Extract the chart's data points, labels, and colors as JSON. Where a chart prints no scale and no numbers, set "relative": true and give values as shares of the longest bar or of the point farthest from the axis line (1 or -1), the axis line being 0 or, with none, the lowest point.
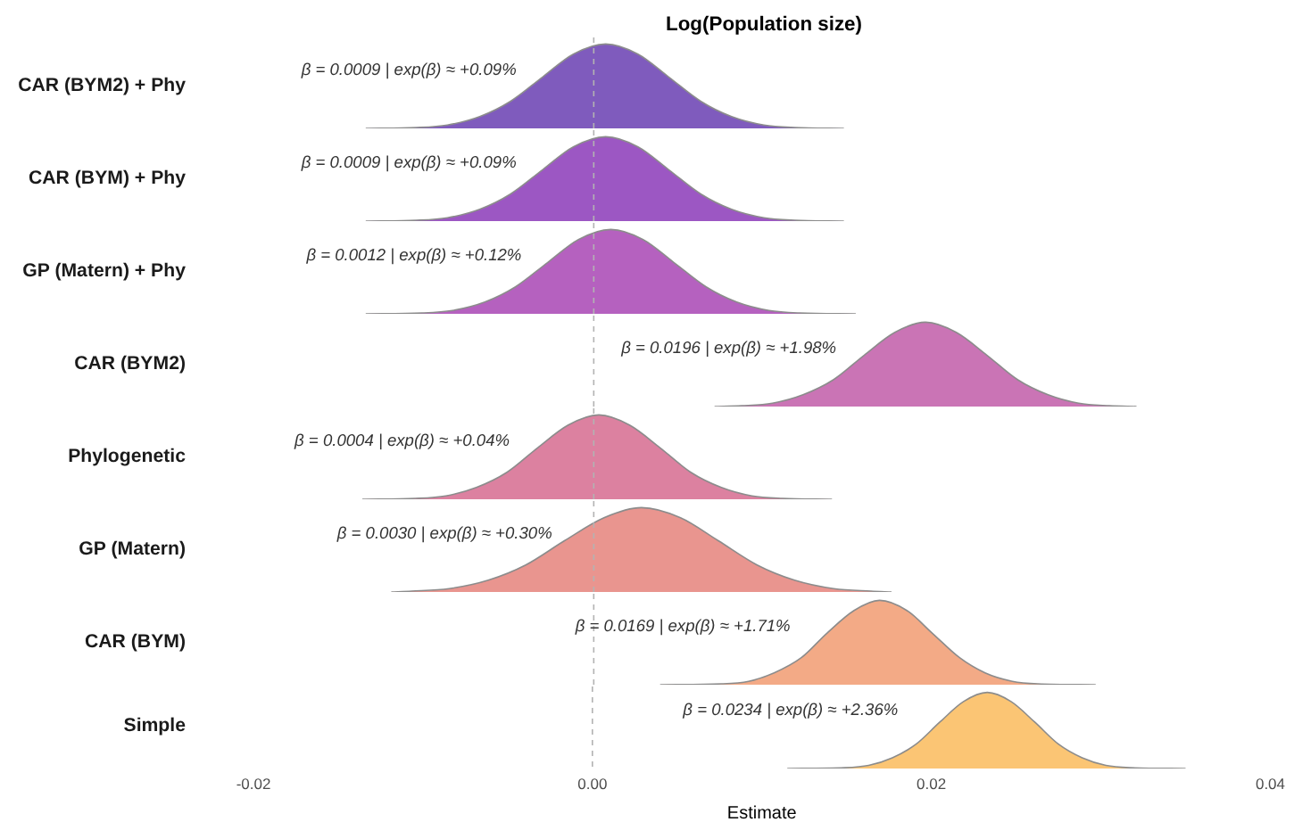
{
  "chart_data": [
    {
      "type": "area",
      "relative": true,
      "title": "Log(Population size)",
      "tick_labels": false,
      "xlim": [
        -0.02,
        0.04
      ],
      "series": [
        {
          "name": "CAR (BYM2) + Phy",
          "color": "#7f5bbd",
          "x": [
            -0.0134,
            -0.0104,
            -0.0086,
            -0.0067,
            -0.0049,
            -0.003,
            -0.0012,
            0.0007,
            0.0026,
            0.0044,
            0.0063,
            0.0081,
            0.01,
            0.0118,
            0.0147
          ],
          "values": [
            0,
            0.01,
            0.04,
            0.14,
            0.32,
            0.61,
            0.88,
            1,
            0.88,
            0.61,
            0.32,
            0.14,
            0.04,
            0.01,
            0
          ]
        }
      ],
      "annotations": [
        "β = 0.0009 | exp(β) ≈ +0.09%"
      ],
      "ref_lines": [
        {
          "axis": "x",
          "value": 0,
          "line_style": "dashed",
          "color": "#b3b3b3"
        }
      ]
    },
    {
      "type": "area",
      "relative": true,
      "tick_labels": false,
      "xlim": [
        -0.02,
        0.04
      ],
      "series": [
        {
          "name": "CAR (BYM) + Phy",
          "color": "#9c57c3",
          "x": [
            -0.0134,
            -0.0104,
            -0.0086,
            -0.0067,
            -0.0049,
            -0.003,
            -0.0012,
            0.0007,
            0.0026,
            0.0044,
            0.0063,
            0.0081,
            0.01,
            0.0118,
            0.0147
          ],
          "values": [
            0,
            0.01,
            0.04,
            0.14,
            0.32,
            0.61,
            0.88,
            1,
            0.88,
            0.61,
            0.32,
            0.14,
            0.04,
            0.01,
            0
          ]
        }
      ],
      "annotations": [
        "β = 0.0009 | exp(β) ≈ +0.09%"
      ],
      "ref_lines": [
        {
          "axis": "x",
          "value": 0,
          "line_style": "dashed",
          "color": "#b3b3b3"
        }
      ]
    },
    {
      "type": "area",
      "relative": true,
      "tick_labels": false,
      "xlim": [
        -0.02,
        0.04
      ],
      "series": [
        {
          "name": "GP (Matern) + Phy",
          "color": "#b561bf",
          "x": [
            -0.0134,
            -0.0101,
            -0.0083,
            -0.0064,
            -0.0046,
            -0.0027,
            -0.0009,
            0.001,
            0.0029,
            0.0047,
            0.0066,
            0.0084,
            0.0103,
            0.0121,
            0.0154
          ],
          "values": [
            0,
            0.01,
            0.04,
            0.14,
            0.32,
            0.61,
            0.88,
            1,
            0.88,
            0.61,
            0.32,
            0.14,
            0.04,
            0.01,
            0
          ]
        }
      ],
      "annotations": [
        "β = 0.0012 | exp(β) ≈ +0.12%"
      ],
      "ref_lines": [
        {
          "axis": "x",
          "value": 0,
          "line_style": "dashed",
          "color": "#b3b3b3"
        }
      ]
    },
    {
      "type": "area",
      "relative": true,
      "tick_labels": false,
      "xlim": [
        -0.02,
        0.04
      ],
      "series": [
        {
          "name": "CAR (BYM2)",
          "color": "#ca74b5",
          "x": [
            0.0071,
            0.0087,
            0.0105,
            0.0123,
            0.0141,
            0.0159,
            0.0177,
            0.0195,
            0.0213,
            0.0231,
            0.0249,
            0.0267,
            0.0285,
            0.0303,
            0.0319
          ],
          "values": [
            0,
            0.01,
            0.04,
            0.14,
            0.32,
            0.61,
            0.88,
            1,
            0.88,
            0.61,
            0.32,
            0.14,
            0.04,
            0.01,
            0
          ]
        }
      ],
      "annotations": [
        "β = 0.0196 | exp(β) ≈ +1.98%"
      ],
      "ref_lines": [
        {
          "axis": "x",
          "value": 0,
          "line_style": "dashed",
          "color": "#b3b3b3"
        }
      ]
    },
    {
      "type": "area",
      "relative": true,
      "tick_labels": false,
      "xlim": [
        -0.02,
        0.04
      ],
      "series": [
        {
          "name": "Phylogenetic",
          "color": "#dc81a0",
          "x": [
            -0.0136,
            -0.0105,
            -0.0087,
            -0.0069,
            -0.0051,
            -0.0033,
            -0.0015,
            0.0003,
            0.0021,
            0.0039,
            0.0057,
            0.0075,
            0.0093,
            0.0111,
            0.014
          ],
          "values": [
            0,
            0.01,
            0.04,
            0.14,
            0.32,
            0.61,
            0.88,
            1,
            0.88,
            0.61,
            0.32,
            0.14,
            0.04,
            0.01,
            0
          ]
        }
      ],
      "annotations": [
        "β = 0.0004 | exp(β) ≈ +0.04%"
      ],
      "ref_lines": [
        {
          "axis": "x",
          "value": 0,
          "line_style": "dashed",
          "color": "#b3b3b3"
        }
      ]
    },
    {
      "type": "area",
      "relative": true,
      "tick_labels": false,
      "xlim": [
        -0.02,
        0.04
      ],
      "series": [
        {
          "name": "GP (Matern)",
          "color": "#e9958f",
          "x": [
            -0.0119,
            -0.0107,
            -0.0085,
            -0.0062,
            -0.004,
            -0.0017,
            0.0006,
            0.0028,
            0.0051,
            0.0073,
            0.0096,
            0.0118,
            0.0141,
            0.0163,
            0.0175
          ],
          "values": [
            0,
            0.01,
            0.04,
            0.14,
            0.32,
            0.61,
            0.88,
            1,
            0.88,
            0.61,
            0.32,
            0.14,
            0.04,
            0.01,
            0
          ]
        }
      ],
      "annotations": [
        "β = 0.0030 | exp(β) ≈ +0.30%"
      ],
      "ref_lines": [
        {
          "axis": "x",
          "value": 0,
          "line_style": "dashed",
          "color": "#b3b3b3"
        }
      ]
    },
    {
      "type": "area",
      "relative": true,
      "tick_labels": false,
      "xlim": [
        -0.02,
        0.04
      ],
      "series": [
        {
          "name": "CAR (BYM)",
          "color": "#f3aa86",
          "x": [
            0.0039,
            0.0075,
            0.0091,
            0.0106,
            0.0122,
            0.0137,
            0.0153,
            0.0168,
            0.0184,
            0.0199,
            0.0215,
            0.023,
            0.0246,
            0.0261,
            0.0295
          ],
          "values": [
            0,
            0.01,
            0.04,
            0.14,
            0.32,
            0.61,
            0.88,
            1,
            0.88,
            0.61,
            0.32,
            0.14,
            0.04,
            0.01,
            0
          ]
        }
      ],
      "annotations": [
        "β = 0.0169 | exp(β) ≈ +1.71%"
      ],
      "ref_lines": [
        {
          "axis": "x",
          "value": 0,
          "line_style": "dashed",
          "color": "#b3b3b3"
        }
      ]
    },
    {
      "type": "area",
      "relative": true,
      "xlabel": "Estimate",
      "xlim": [
        -0.02,
        0.04
      ],
      "xticks": [
        -0.02,
        {
          "value": 0,
          "label": "0.00"
        },
        0.02,
        0.04
      ],
      "series": [
        {
          "name": "Simple",
          "color": "#fbc574",
          "x": [
            0.0115,
            0.0149,
            0.0163,
            0.0177,
            0.0191,
            0.0205,
            0.0219,
            0.0233,
            0.0247,
            0.0261,
            0.0275,
            0.0289,
            0.0303,
            0.0317,
            0.035
          ],
          "values": [
            0,
            0.01,
            0.04,
            0.14,
            0.32,
            0.61,
            0.88,
            1,
            0.88,
            0.61,
            0.32,
            0.14,
            0.04,
            0.01,
            0
          ]
        }
      ],
      "annotations": [
        "β = 0.0234 | exp(β) ≈ +2.36%"
      ],
      "ref_lines": [
        {
          "axis": "x",
          "value": 0,
          "line_style": "dashed",
          "color": "#b3b3b3"
        }
      ]
    }
  ]
}
